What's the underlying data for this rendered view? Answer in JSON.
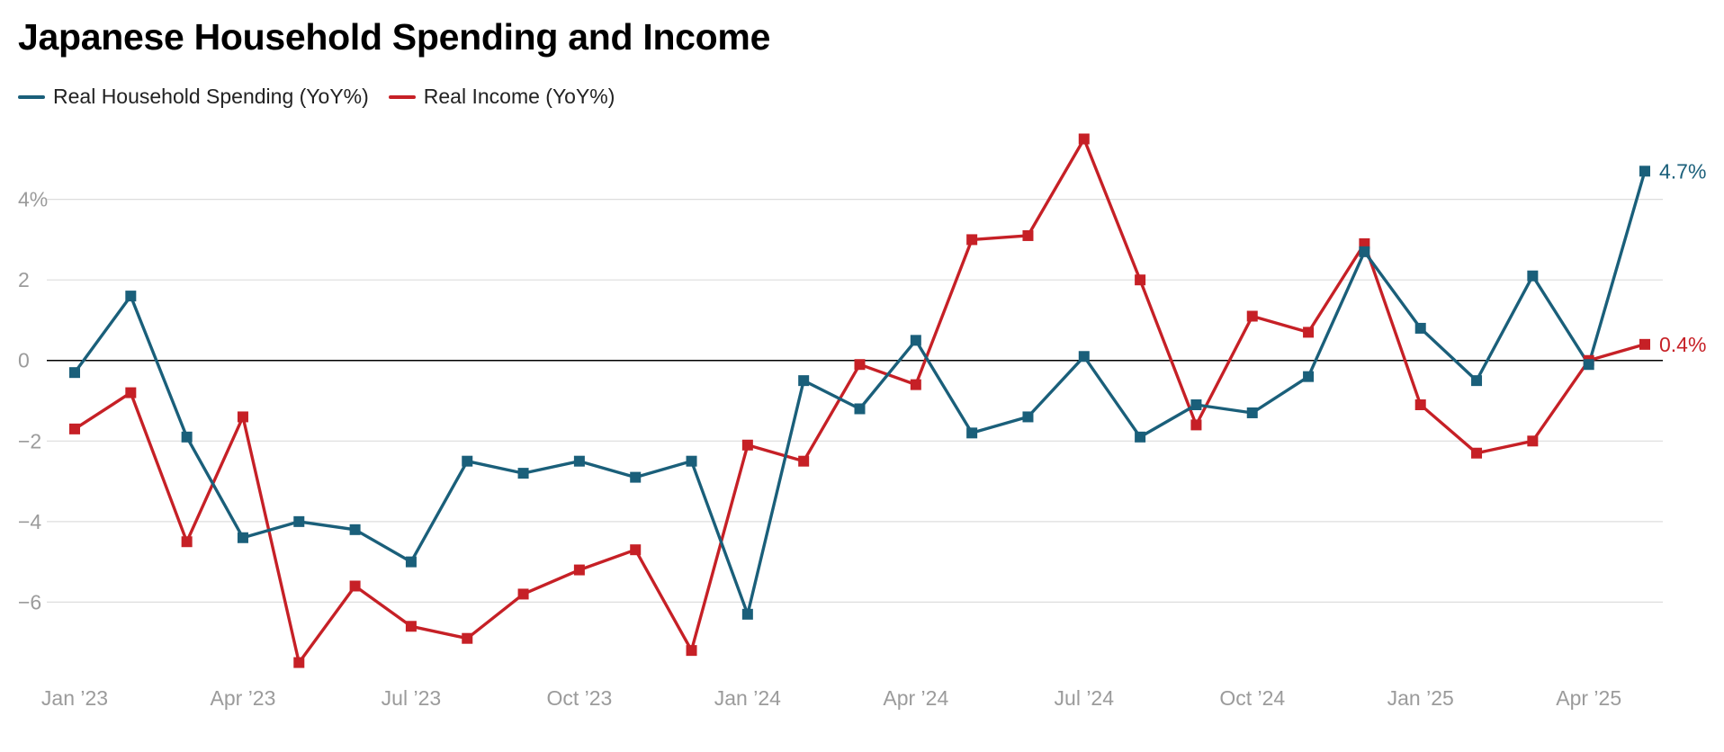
{
  "colors": {
    "spending": "#1a5f7a",
    "income": "#c62026",
    "grid": "#dddddd",
    "zero_line": "#000000",
    "tick_text": "#9b9b9b"
  },
  "chart_data": {
    "type": "line",
    "title": "Japanese Household Spending and Income",
    "xlabel": "",
    "ylabel": "",
    "x": [
      "2023-01",
      "2023-02",
      "2023-03",
      "2023-04",
      "2023-05",
      "2023-06",
      "2023-07",
      "2023-08",
      "2023-09",
      "2023-10",
      "2023-11",
      "2023-12",
      "2024-01",
      "2024-02",
      "2024-03",
      "2024-04",
      "2024-05",
      "2024-06",
      "2024-07",
      "2024-08",
      "2024-09",
      "2024-10",
      "2024-11",
      "2024-12",
      "2025-01",
      "2025-02",
      "2025-03",
      "2025-04",
      "2025-05"
    ],
    "x_ticks": [
      {
        "x": "2023-01",
        "label": "Jan ’23"
      },
      {
        "x": "2023-04",
        "label": "Apr ’23"
      },
      {
        "x": "2023-07",
        "label": "Jul ’23"
      },
      {
        "x": "2023-10",
        "label": "Oct ’23"
      },
      {
        "x": "2024-01",
        "label": "Jan ’24"
      },
      {
        "x": "2024-04",
        "label": "Apr ’24"
      },
      {
        "x": "2024-07",
        "label": "Jul ’24"
      },
      {
        "x": "2024-10",
        "label": "Oct ’24"
      },
      {
        "x": "2025-01",
        "label": "Jan ’25"
      },
      {
        "x": "2025-04",
        "label": "Apr ’25"
      }
    ],
    "y_ticks": [
      {
        "value": 4,
        "label": "4%"
      },
      {
        "value": 2,
        "label": "2"
      },
      {
        "value": 0,
        "label": "0"
      },
      {
        "value": -2,
        "label": "−2"
      },
      {
        "value": -4,
        "label": "−4"
      },
      {
        "value": -6,
        "label": "−6"
      }
    ],
    "ylim": [
      -7.8,
      5.6
    ],
    "grid": true,
    "legend_position": "top-left",
    "series": [
      {
        "key": "spending",
        "name": "Real Household Spending (YoY%)",
        "end_label": "4.7%",
        "values": [
          -0.3,
          1.6,
          -1.9,
          -4.4,
          -4.0,
          -4.2,
          -5.0,
          -2.5,
          -2.8,
          -2.5,
          -2.9,
          -2.5,
          -6.3,
          -0.5,
          -1.2,
          0.5,
          -1.8,
          -1.4,
          0.1,
          -1.9,
          -1.1,
          -1.3,
          -0.4,
          2.7,
          0.8,
          -0.5,
          2.1,
          -0.1,
          4.7
        ]
      },
      {
        "key": "income",
        "name": "Real Income (YoY%)",
        "end_label": "0.4%",
        "values": [
          -1.7,
          -0.8,
          -4.5,
          -1.4,
          -7.5,
          -5.6,
          -6.6,
          -6.9,
          -5.8,
          -5.2,
          -4.7,
          -7.2,
          -2.1,
          -2.5,
          -0.1,
          -0.6,
          3.0,
          3.1,
          5.5,
          2.0,
          -1.6,
          1.1,
          0.7,
          2.9,
          -1.1,
          -2.3,
          -2.0,
          0.0,
          0.4
        ]
      }
    ]
  }
}
